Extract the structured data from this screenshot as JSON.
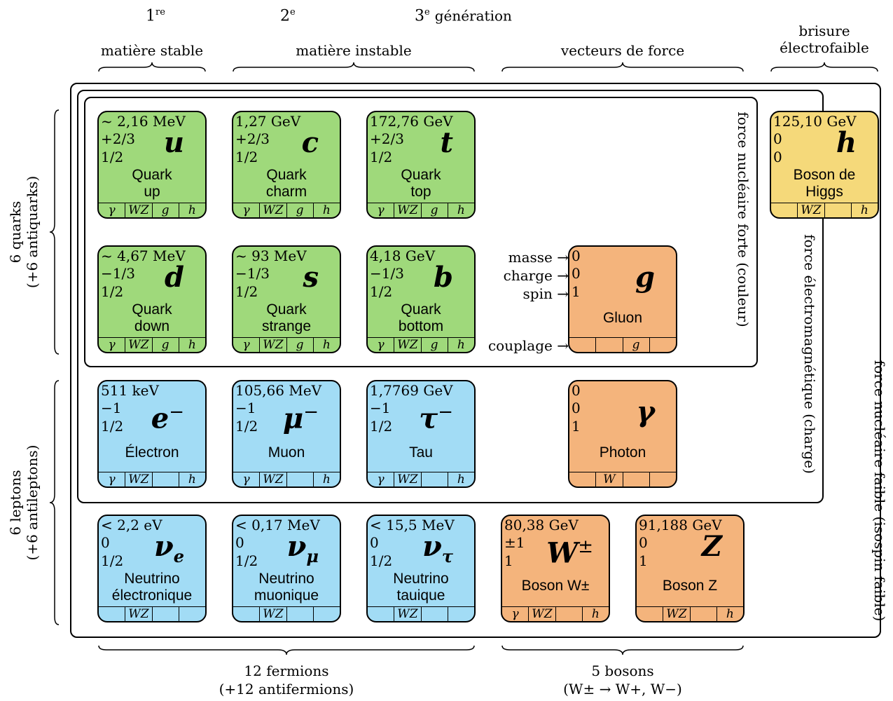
{
  "generations": {
    "g1": "1",
    "g1_sup": "re",
    "g2": "2",
    "g2_sup": "e",
    "g3": "3",
    "g3_sup": "e",
    "g3_word": "génération"
  },
  "headers": {
    "stable": "matière stable",
    "unstable": "matière instable",
    "force_vectors": "vecteurs de force",
    "ew_breaking_1": "brisure",
    "ew_breaking_2": "électrofaible"
  },
  "side_labels": {
    "quarks_1": "6 quarks",
    "quarks_2": "(+6 antiquarks)",
    "leptons_1": "6 leptons",
    "leptons_2": "(+6 antileptons)",
    "strong": "force nucléaire forte (couleur)",
    "em": "force électromagnétique (charge)",
    "weak": "force nucléaire faible (isospin faible)"
  },
  "footers": {
    "fermions_1": "12 fermions",
    "fermions_2": "(+12 antifermions)",
    "bosons_1": "5 bosons",
    "bosons_2": "(W± → W+, W−)"
  },
  "legend": {
    "mass": "masse",
    "charge": "charge",
    "spin": "spin",
    "coupling": "couplage",
    "arrow": "→"
  },
  "particles": {
    "up": {
      "mass": "~ 2,16 MeV",
      "charge": "+2/3",
      "spin": "1/2",
      "symbol": "u",
      "name": "Quark\nup",
      "couplings": [
        "γ",
        "WZ",
        "g",
        "h"
      ]
    },
    "charm": {
      "mass": "1,27 GeV",
      "charge": "+2/3",
      "spin": "1/2",
      "symbol": "c",
      "name": "Quark\ncharm",
      "couplings": [
        "γ",
        "WZ",
        "g",
        "h"
      ]
    },
    "top": {
      "mass": "172,76 GeV",
      "charge": "+2/3",
      "spin": "1/2",
      "symbol": "t",
      "name": "Quark\ntop",
      "couplings": [
        "γ",
        "WZ",
        "g",
        "h"
      ]
    },
    "down": {
      "mass": "~ 4,67 MeV",
      "charge": "−1/3",
      "spin": "1/2",
      "symbol": "d",
      "name": "Quark\ndown",
      "couplings": [
        "γ",
        "WZ",
        "g",
        "h"
      ]
    },
    "strange": {
      "mass": "~ 93 MeV",
      "charge": "−1/3",
      "spin": "1/2",
      "symbol": "s",
      "name": "Quark\nstrange",
      "couplings": [
        "γ",
        "WZ",
        "g",
        "h"
      ]
    },
    "bottom": {
      "mass": "4,18 GeV",
      "charge": "−1/3",
      "spin": "1/2",
      "symbol": "b",
      "name": "Quark\nbottom",
      "couplings": [
        "γ",
        "WZ",
        "g",
        "h"
      ]
    },
    "electron": {
      "mass": "511 keV",
      "charge": "−1",
      "spin": "1/2",
      "symbol": "e",
      "symbol_sup": "−",
      "name": "Électron",
      "couplings": [
        "γ",
        "WZ",
        "",
        "h"
      ]
    },
    "muon": {
      "mass": "105,66 MeV",
      "charge": "−1",
      "spin": "1/2",
      "symbol": "μ",
      "symbol_sup": "−",
      "name": "Muon",
      "couplings": [
        "γ",
        "WZ",
        "",
        "h"
      ]
    },
    "tau": {
      "mass": "1,7769 GeV",
      "charge": "−1",
      "spin": "1/2",
      "symbol": "τ",
      "symbol_sup": "−",
      "name": "Tau",
      "couplings": [
        "γ",
        "WZ",
        "",
        "h"
      ]
    },
    "nu_e": {
      "mass": "< 2,2 eV",
      "charge": "0",
      "spin": "1/2",
      "symbol": "ν",
      "symbol_sub": "e",
      "name": "Neutrino\nélectronique",
      "couplings": [
        "",
        "WZ",
        "",
        ""
      ]
    },
    "nu_mu": {
      "mass": "< 0,17 MeV",
      "charge": "0",
      "spin": "1/2",
      "symbol": "ν",
      "symbol_sub": "μ",
      "name": "Neutrino\nmuonique",
      "couplings": [
        "",
        "WZ",
        "",
        ""
      ]
    },
    "nu_tau": {
      "mass": "< 15,5 MeV",
      "charge": "0",
      "spin": "1/2",
      "symbol": "ν",
      "symbol_sub": "τ",
      "name": "Neutrino\ntauique",
      "couplings": [
        "",
        "WZ",
        "",
        ""
      ]
    },
    "gluon": {
      "mass": "0",
      "charge": "0",
      "spin": "1",
      "symbol": "g",
      "name": "Gluon",
      "couplings": [
        "",
        "",
        "g",
        ""
      ]
    },
    "photon": {
      "mass": "0",
      "charge": "0",
      "spin": "1",
      "symbol": "γ",
      "name": "Photon",
      "couplings": [
        "",
        "W",
        "",
        ""
      ]
    },
    "w": {
      "mass": "80,38 GeV",
      "charge": "±1",
      "spin": "1",
      "symbol": "W",
      "symbol_sup": "±",
      "name": "Boson W±",
      "couplings": [
        "γ",
        "WZ",
        "",
        "h"
      ]
    },
    "z": {
      "mass": "91,188 GeV",
      "charge": "0",
      "spin": "1",
      "symbol": "Z",
      "name": "Boson Z",
      "couplings": [
        "",
        "WZ",
        "",
        "h"
      ]
    },
    "higgs": {
      "mass": "125,10 GeV",
      "charge": "0",
      "spin": "0",
      "symbol": "h",
      "name": "Boson de\nHiggs",
      "couplings": [
        "",
        "WZ",
        "",
        "h"
      ]
    }
  },
  "colors": {
    "quark": "#9fd97b",
    "lepton": "#a2dcf5",
    "boson": "#f4b47c",
    "higgs": "#f5d97a"
  }
}
